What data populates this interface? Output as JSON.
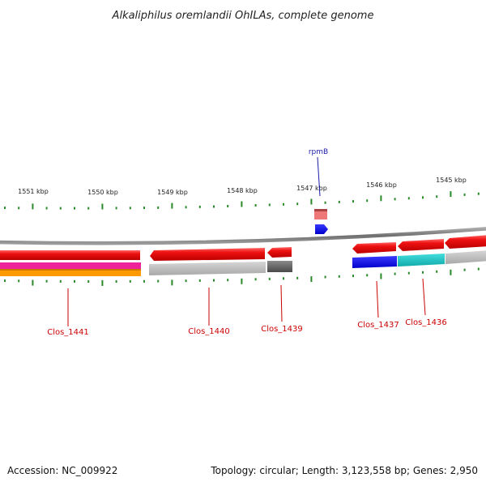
{
  "title": "Alkaliphilus oremlandii OhILAs, complete genome",
  "ruler": {
    "ticks": [
      "1551 kbp",
      "1550 kbp",
      "1549 kbp",
      "1548 kbp",
      "1547 kbp",
      "1546 kbp",
      "1545 kbp"
    ]
  },
  "genes": [
    {
      "label": "Clos_1441",
      "color": "#dd0000"
    },
    {
      "label": "Clos_1440",
      "color": "#dd0000"
    },
    {
      "label": "Clos_1439",
      "color": "#dd0000"
    },
    {
      "label": "Clos_1437",
      "color": "#dd0000"
    },
    {
      "label": "Clos_1436",
      "color": "#dd0000"
    }
  ],
  "features": {
    "rpmB": {
      "label": "rpmB",
      "color": "#1a1aee"
    }
  },
  "colors": {
    "cds": "#ee1111",
    "backbone": "#808080",
    "tick": "#2a8a2a",
    "track_magenta": "#ee2299",
    "track_orange": "#ff9900",
    "track_gray": "#b4b4b4",
    "track_dark_gray": "#666666",
    "track_blue": "#0a0aee",
    "track_cyan": "#22cccc",
    "rrna": "#ee7777"
  },
  "footer": {
    "accession": "Accession: NC_009922",
    "summary": "Topology: circular; Length: 3,123,558 bp; Genes: 2,950"
  }
}
